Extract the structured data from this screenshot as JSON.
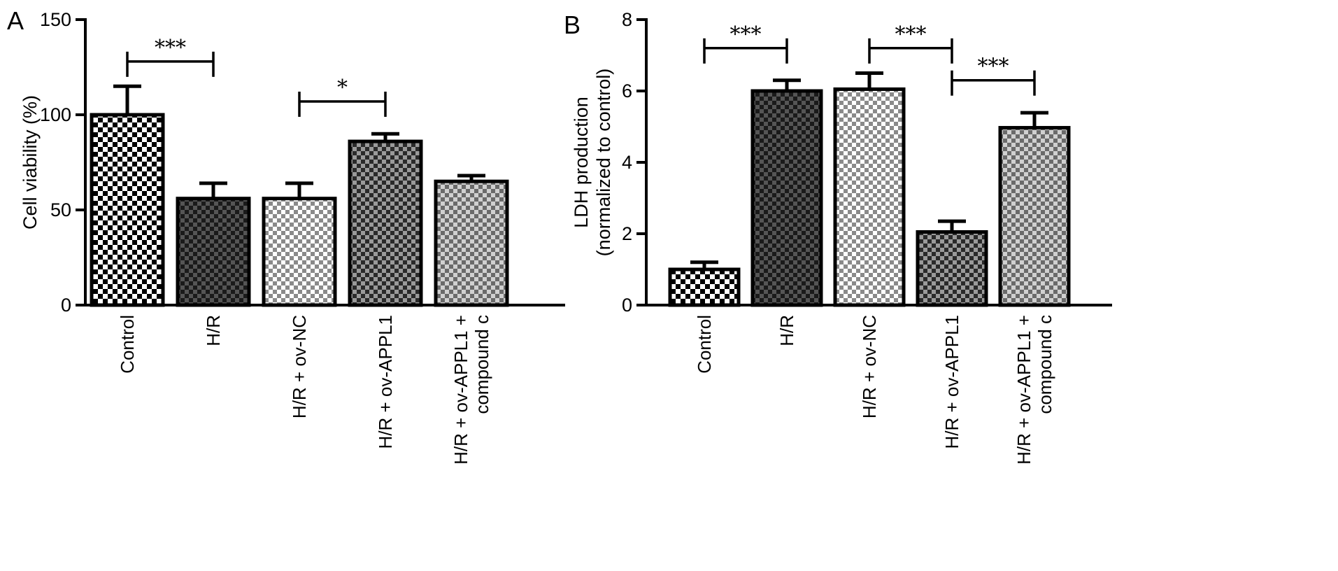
{
  "chart_data": [
    {
      "panel": "A",
      "type": "bar",
      "ylabel": "Cell viability (%)",
      "ylim": [
        0,
        150
      ],
      "yticks": [
        "0",
        "50",
        "100",
        "150"
      ],
      "categories": [
        [
          "Control"
        ],
        [
          "H/R"
        ],
        [
          "H/R + ov-NC"
        ],
        [
          "H/R + ov-APPL1"
        ],
        [
          "H/R + ov-APPL1 +",
          "compound c"
        ]
      ],
      "values": [
        100,
        56,
        56,
        86,
        65
      ],
      "errors": [
        15,
        8,
        8,
        4,
        3
      ],
      "fills": [
        "checkerLarge",
        "checkerDark",
        "checkerLight",
        "checkerMedDark",
        "checkerMedLight"
      ],
      "significance": [
        {
          "from": 0,
          "to": 1,
          "level": 128,
          "label": "***"
        },
        {
          "from": 2,
          "to": 3,
          "level": 107,
          "label": "*"
        }
      ]
    },
    {
      "panel": "B",
      "type": "bar",
      "ylabel": [
        "LDH  production",
        "(normalized to control)"
      ],
      "ylim": [
        0,
        8
      ],
      "yticks": [
        "0",
        "2",
        "4",
        "6",
        "8"
      ],
      "categories": [
        [
          "Control"
        ],
        [
          "H/R"
        ],
        [
          "H/R + ov-NC"
        ],
        [
          "H/R + ov-APPL1"
        ],
        [
          "H/R + ov-APPL1 +",
          "compound c"
        ]
      ],
      "values": [
        1.0,
        6.0,
        6.05,
        2.05,
        4.97
      ],
      "errors": [
        0.2,
        0.3,
        0.45,
        0.3,
        0.42
      ],
      "fills": [
        "checkerLarge",
        "checkerDark",
        "checkerLight",
        "checkerMedDark",
        "checkerMedLight"
      ],
      "significance": [
        {
          "from": 0,
          "to": 1,
          "level": 7.2,
          "label": "***"
        },
        {
          "from": 2,
          "to": 3,
          "level": 7.2,
          "label": "***"
        },
        {
          "from": 3,
          "to": 4,
          "level": 6.3,
          "label": "***"
        }
      ]
    }
  ]
}
